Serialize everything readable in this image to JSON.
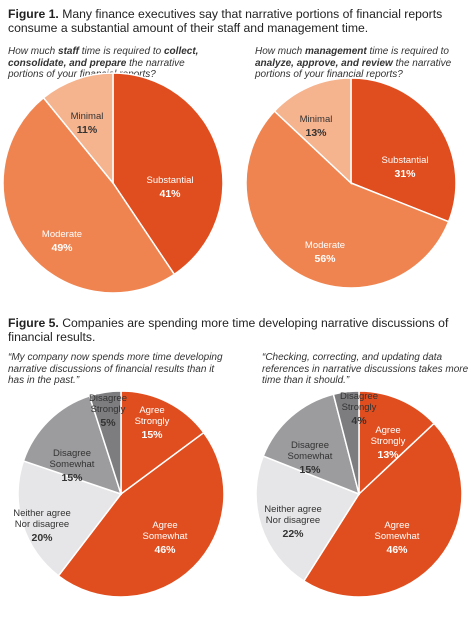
{
  "figure1": {
    "label": "Figure 1.",
    "title": "Many finance executives say that narrative portions of financial reports consume a substantial amount of their staff and management time."
  },
  "figure5": {
    "label": "Figure 5.",
    "title": "Companies are spending more time developing narrative discussions of financial results."
  },
  "questions": {
    "q1": {
      "pre": "How much ",
      "em": "staff",
      "mid": " time is required to ",
      "em2": "collect, consolidate, and prepare",
      "post": " the narrative portions of your financial reports?"
    },
    "q2": {
      "pre": "How much ",
      "em": "management",
      "mid": " time is required to ",
      "em2": "analyze, approve, and review",
      "post": " the narrative portions of your financial reports?"
    },
    "q3": {
      "text": "“My company now spends more time developing narrative discussions of financial results than it has in the past.”"
    },
    "q4": {
      "text": "“Checking, correcting, and updating data references in narrative discussions takes more time than it should.”"
    }
  },
  "colors": {
    "substantial": "#e04e1f",
    "moderate": "#ef8450",
    "minimal": "#f5b38e",
    "agree_strongly": "#e04e1f",
    "agree_somewhat": "#e04e1f",
    "neither": "#e6e6e8",
    "disagree_somewhat": "#9c9c9f",
    "disagree_strongly": "#7d7d80",
    "light_text": "#ffffff",
    "dark_text": "#333333"
  },
  "chart_data": [
    {
      "type": "pie",
      "title": "How much staff time is required to collect, consolidate, and prepare the narrative portions of your financial reports?",
      "slices": [
        {
          "label": "Substantial",
          "value": 41,
          "display": "41%"
        },
        {
          "label": "Moderate",
          "value": 49,
          "display": "49%"
        },
        {
          "label": "Minimal",
          "value": 11,
          "display": "11%"
        }
      ]
    },
    {
      "type": "pie",
      "title": "How much management time is required to analyze, approve, and review the narrative portions of your financial reports?",
      "slices": [
        {
          "label": "Substantial",
          "value": 31,
          "display": "31%"
        },
        {
          "label": "Moderate",
          "value": 56,
          "display": "56%"
        },
        {
          "label": "Minimal",
          "value": 13,
          "display": "13%"
        }
      ]
    },
    {
      "type": "pie",
      "title": "“My company now spends more time developing narrative discussions of financial results than it has in the past.”",
      "slices": [
        {
          "label": "Agree strongly",
          "value": 15,
          "display": "15%"
        },
        {
          "label": "Agree somewhat",
          "value": 46,
          "display": "46%"
        },
        {
          "label": "Neither agree nor disagree",
          "value": 20,
          "display": "20%"
        },
        {
          "label": "Disagree somewhat",
          "value": 15,
          "display": "15%"
        },
        {
          "label": "Disagree strongly",
          "value": 5,
          "display": "5%"
        }
      ]
    },
    {
      "type": "pie",
      "title": "“Checking, correcting, and updating data references in narrative discussions takes more time than it should.”",
      "slices": [
        {
          "label": "Agree strongly",
          "value": 13,
          "display": "13%"
        },
        {
          "label": "Agree somewhat",
          "value": 46,
          "display": "46%"
        },
        {
          "label": "Neither agree nor disagree",
          "value": 22,
          "display": "22%"
        },
        {
          "label": "Disagree somewhat",
          "value": 15,
          "display": "15%"
        },
        {
          "label": "Disagree strongly",
          "value": 4,
          "display": "4%"
        }
      ]
    }
  ]
}
